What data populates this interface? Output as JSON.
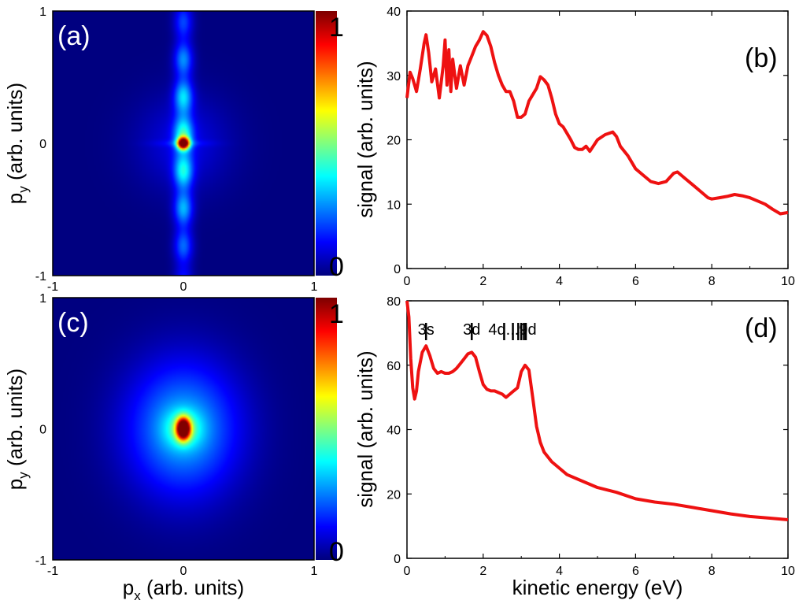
{
  "colors": {
    "line": "#ee1111",
    "axis": "#000000",
    "background": "#ffffff"
  },
  "chart_data": [
    {
      "panel": "(a)",
      "type": "heatmap",
      "xlabel_main": "p",
      "xlabel_sub": "x",
      "xlabel_rest": " (arb. units)",
      "ylabel_main": "p",
      "ylabel_sub": "y",
      "ylabel_rest": " (arb. units)",
      "xlabel_shown": false,
      "xlim": [
        -1,
        1
      ],
      "ylim": [
        -1,
        1
      ],
      "xticks": [
        "-1",
        "0",
        "1"
      ],
      "yticks": [
        "-1",
        "0",
        "1"
      ],
      "colorbar": {
        "min_label": "0",
        "max_label": "1",
        "range": [
          0,
          1
        ]
      },
      "distribution": {
        "shape": "vertical-stripe",
        "sigma_x": 0.05,
        "sigma_y": 0.85,
        "core_sigma": 0.03,
        "halo_sigma": 0.25,
        "halo_level": 0.1,
        "peak_value": 1.0,
        "peak_at": [
          0,
          0
        ]
      }
    },
    {
      "panel": "(b)",
      "type": "line",
      "xlabel": "",
      "ylabel": "signal (arb. units)",
      "xlim": [
        0,
        10
      ],
      "ylim": [
        0,
        40
      ],
      "xticks": [
        0,
        2,
        4,
        6,
        8,
        10
      ],
      "yticks": [
        0,
        10,
        20,
        30,
        40
      ],
      "series": [
        {
          "x": [
            0,
            0.08,
            0.15,
            0.25,
            0.35,
            0.45,
            0.5,
            0.57,
            0.65,
            0.75,
            0.85,
            0.95,
            1.0,
            1.05,
            1.1,
            1.15,
            1.2,
            1.3,
            1.4,
            1.5,
            1.6,
            1.7,
            1.8,
            1.9,
            2.0,
            2.1,
            2.2,
            2.3,
            2.4,
            2.5,
            2.6,
            2.7,
            2.8,
            2.9,
            3.0,
            3.1,
            3.2,
            3.3,
            3.4,
            3.5,
            3.6,
            3.7,
            3.8,
            3.9,
            4.0,
            4.1,
            4.2,
            4.3,
            4.4,
            4.5,
            4.6,
            4.7,
            4.8,
            5.0,
            5.2,
            5.4,
            5.5,
            5.6,
            5.8,
            6.0,
            6.2,
            6.4,
            6.6,
            6.8,
            7.0,
            7.1,
            7.3,
            7.5,
            7.7,
            7.9,
            8.0,
            8.2,
            8.4,
            8.6,
            8.8,
            9.0,
            9.2,
            9.4,
            9.6,
            9.8,
            10.0
          ],
          "y": [
            26.5,
            30.5,
            29.5,
            27.5,
            31,
            35,
            36.3,
            33.5,
            29,
            31,
            26.5,
            31.5,
            35.5,
            28.5,
            34,
            27.5,
            32.5,
            28,
            31.5,
            28.5,
            31.5,
            33,
            34.5,
            35.5,
            36.8,
            36.2,
            34.5,
            32,
            30,
            28.5,
            27.5,
            27.5,
            26,
            23.5,
            23.5,
            24,
            26,
            27,
            28,
            29.8,
            29.3,
            28.5,
            26.5,
            24,
            22.5,
            22,
            21,
            20,
            18.8,
            18.5,
            18.5,
            19,
            18.2,
            20,
            20.8,
            21.2,
            20.5,
            19,
            17.5,
            15.5,
            14.5,
            13.5,
            13.2,
            13.5,
            14.8,
            15,
            14,
            13,
            12,
            11,
            10.8,
            11,
            11.2,
            11.5,
            11.3,
            11,
            10.5,
            10,
            9.2,
            8.5,
            8.7
          ]
        }
      ]
    },
    {
      "panel": "(c)",
      "type": "heatmap",
      "xlabel_main": "p",
      "xlabel_sub": "x",
      "xlabel_rest": " (arb. units)",
      "ylabel_main": "p",
      "ylabel_sub": "y",
      "ylabel_rest": " (arb. units)",
      "xlabel_shown": true,
      "xlim": [
        -1,
        1
      ],
      "ylim": [
        -1,
        1
      ],
      "xticks": [
        "-1",
        "0",
        "1"
      ],
      "yticks": [
        "-1",
        "0",
        "1"
      ],
      "colorbar": {
        "min_label": "0",
        "max_label": "1",
        "range": [
          0,
          1
        ]
      },
      "distribution": {
        "shape": "elliptical-blob",
        "sigma_x": 0.3,
        "sigma_y": 0.36,
        "core_sigma_x": 0.035,
        "core_sigma_y": 0.055,
        "halo_level": 0.3,
        "peak_value": 1.0,
        "peak_at": [
          0,
          0
        ]
      }
    },
    {
      "panel": "(d)",
      "type": "line",
      "xlabel": "kinetic energy (eV)",
      "ylabel": "signal (arb. units)",
      "xlim": [
        0,
        10
      ],
      "ylim": [
        0,
        80
      ],
      "xticks": [
        0,
        2,
        4,
        6,
        8,
        10
      ],
      "yticks": [
        0,
        20,
        40,
        60,
        80
      ],
      "annotations": [
        {
          "text": "3s",
          "x": 0.5
        },
        {
          "text": "3d",
          "x": 1.7
        },
        {
          "text": "4d...9d",
          "x_start": 2.55,
          "marks": [
            2.55,
            2.78,
            2.92,
            3.0,
            3.07,
            3.12
          ]
        }
      ],
      "series": [
        {
          "x": [
            0,
            0.05,
            0.1,
            0.15,
            0.2,
            0.25,
            0.3,
            0.4,
            0.5,
            0.6,
            0.7,
            0.8,
            0.9,
            1.0,
            1.1,
            1.2,
            1.3,
            1.4,
            1.5,
            1.6,
            1.7,
            1.8,
            1.9,
            2.0,
            2.1,
            2.2,
            2.3,
            2.4,
            2.5,
            2.6,
            2.7,
            2.8,
            2.9,
            3.0,
            3.1,
            3.2,
            3.3,
            3.4,
            3.5,
            3.6,
            3.8,
            4.0,
            4.2,
            4.5,
            5.0,
            5.5,
            6.0,
            6.5,
            7.0,
            7.5,
            8.0,
            8.5,
            9.0,
            9.5,
            10.0
          ],
          "y": [
            80,
            75,
            62,
            53,
            49.5,
            52,
            58,
            64,
            66,
            63,
            59,
            57.5,
            58,
            57.5,
            57.5,
            58,
            59,
            60.5,
            62,
            63.5,
            64,
            62.5,
            58,
            54,
            52.5,
            52,
            52,
            51.5,
            51,
            50,
            51,
            52,
            53,
            58,
            60,
            58.5,
            50,
            41,
            36,
            33,
            30,
            28,
            26,
            24.5,
            22,
            20.5,
            18.5,
            17.5,
            16.8,
            15.8,
            14.8,
            13.8,
            13,
            12.5,
            12
          ]
        }
      ]
    }
  ]
}
